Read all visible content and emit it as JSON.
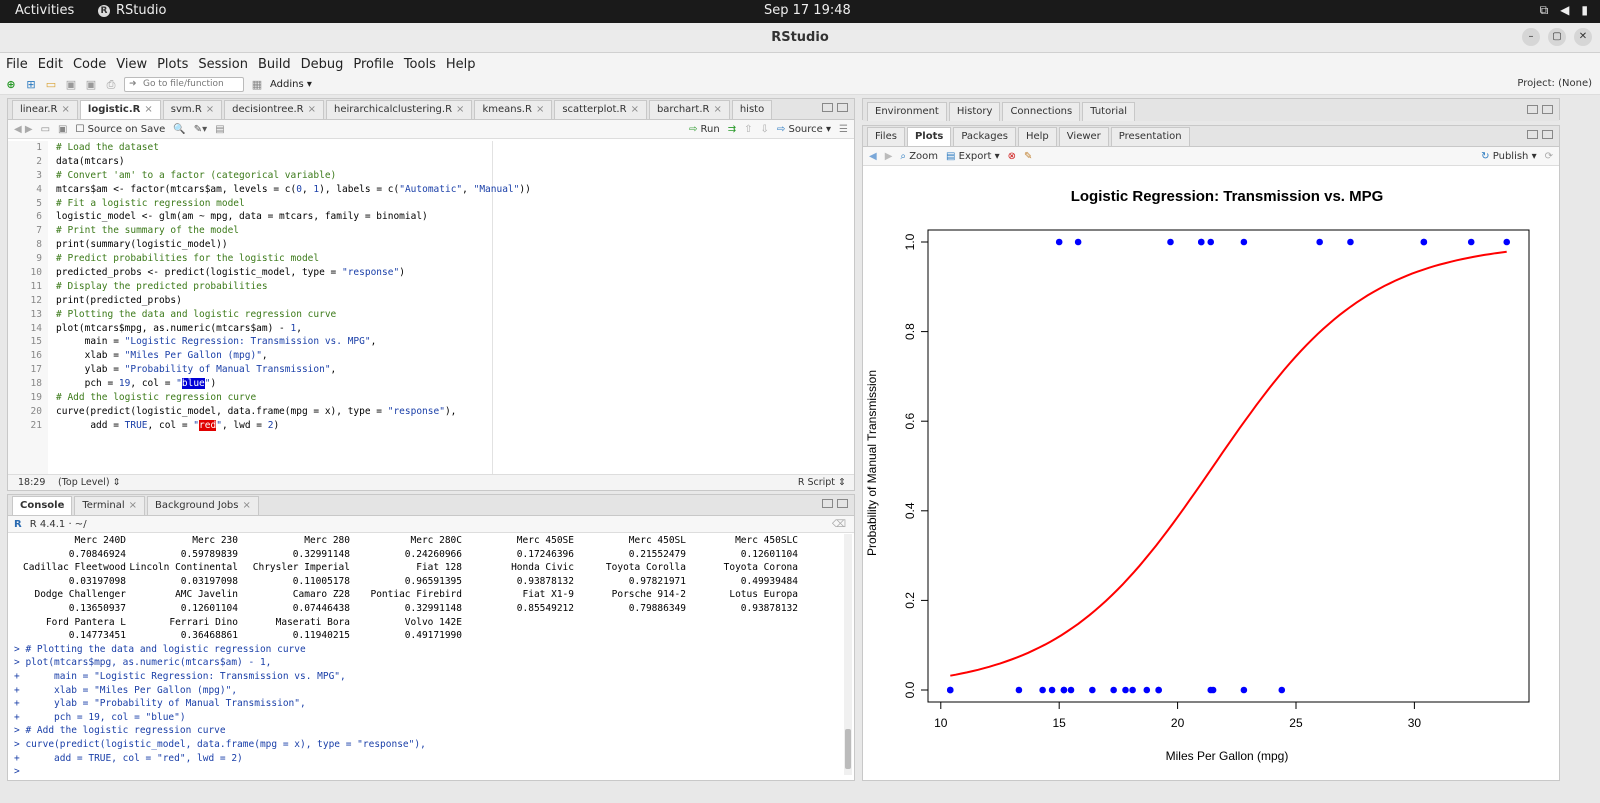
{
  "system": {
    "activities": "Activities",
    "app_name": "RStudio",
    "clock": "Sep 17  19:48"
  },
  "window": {
    "title": "RStudio"
  },
  "menu": [
    "File",
    "Edit",
    "Code",
    "View",
    "Plots",
    "Session",
    "Build",
    "Debug",
    "Profile",
    "Tools",
    "Help"
  ],
  "toolbar": {
    "goto_placeholder": "Go to file/function",
    "addins": "Addins",
    "project": "Project: (None)"
  },
  "editor": {
    "tabs": [
      "linear.R",
      "logistic.R",
      "svm.R",
      "decisiontree.R",
      "heirarchicalclustering.R",
      "kmeans.R",
      "scatterplot.R",
      "barchart.R",
      "histo"
    ],
    "active_tab": "logistic.R",
    "source_on_save": "Source on Save",
    "run": "Run",
    "source": "Source",
    "cursor_pos": "18:29",
    "scope": "(Top Level)",
    "file_type": "R Script"
  },
  "code_lines": [
    "# Load the dataset",
    "data(mtcars)",
    "# Convert 'am' to a factor (categorical variable)",
    "mtcars$am <- factor(mtcars$am, levels = c(0, 1), labels = c(\"Automatic\", \"Manual\"))",
    "# Fit a logistic regression model",
    "logistic_model <- glm(am ~ mpg, data = mtcars, family = binomial)",
    "# Print the summary of the model",
    "print(summary(logistic_model))",
    "# Predict probabilities for the logistic model",
    "predicted_probs <- predict(logistic_model, type = \"response\")",
    "# Display the predicted probabilities",
    "print(predicted_probs)",
    "# Plotting the data and logistic regression curve",
    "plot(mtcars$mpg, as.numeric(mtcars$am) - 1,",
    "     main = \"Logistic Regression: Transmission vs. MPG\",",
    "     xlab = \"Miles Per Gallon (mpg)\",",
    "     ylab = \"Probability of Manual Transmission\",",
    "     pch = 19, col = \"blue\")",
    "# Add the logistic regression curve",
    "curve(predict(logistic_model, data.frame(mpg = x), type = \"response\"),",
    "      add = TRUE, col = \"red\", lwd = 2)"
  ],
  "console": {
    "tabs": [
      "Console",
      "Terminal",
      "Background Jobs"
    ],
    "r_version": "R 4.4.1 · ~/",
    "output_rows": [
      [
        "Merc 240D",
        "Merc 230",
        "Merc 280",
        "Merc 280C",
        "Merc 450SE",
        "Merc 450SL",
        "Merc 450SLC"
      ],
      [
        "0.70846924",
        "0.59789839",
        "0.32991148",
        "0.24260966",
        "0.17246396",
        "0.21552479",
        "0.12601104"
      ],
      [
        "Cadillac Fleetwood",
        "Lincoln Continental",
        "Chrysler Imperial",
        "Fiat 128",
        "Honda Civic",
        "Toyota Corolla",
        "Toyota Corona"
      ],
      [
        "0.03197098",
        "0.03197098",
        "0.11005178",
        "0.96591395",
        "0.93878132",
        "0.97821971",
        "0.49939484"
      ],
      [
        "Dodge Challenger",
        "AMC Javelin",
        "Camaro Z28",
        "Pontiac Firebird",
        "Fiat X1-9",
        "Porsche 914-2",
        "Lotus Europa"
      ],
      [
        "0.13650937",
        "0.12601104",
        "0.07446438",
        "0.32991148",
        "0.85549212",
        "0.79886349",
        "0.93878132"
      ],
      [
        "Ford Pantera L",
        "Ferrari Dino",
        "Maserati Bora",
        "Volvo 142E",
        "",
        "",
        ""
      ],
      [
        "0.14773451",
        "0.36468861",
        "0.11940215",
        "0.49171990",
        "",
        "",
        ""
      ]
    ],
    "input_lines": [
      "> # Plotting the data and logistic regression curve",
      "> plot(mtcars$mpg, as.numeric(mtcars$am) - 1,",
      "+      main = \"Logistic Regression: Transmission vs. MPG\",",
      "+      xlab = \"Miles Per Gallon (mpg)\",",
      "+      ylab = \"Probability of Manual Transmission\",",
      "+      pch = 19, col = \"blue\")",
      "> # Add the logistic regression curve",
      "> curve(predict(logistic_model, data.frame(mpg = x), type = \"response\"),",
      "+      add = TRUE, col = \"red\", lwd = 2)",
      "> "
    ]
  },
  "env_tabs": [
    "Environment",
    "History",
    "Connections",
    "Tutorial"
  ],
  "plots_tabs": [
    "Files",
    "Plots",
    "Packages",
    "Help",
    "Viewer",
    "Presentation"
  ],
  "plots_toolbar": {
    "zoom": "Zoom",
    "export": "Export",
    "publish": "Publish"
  },
  "chart_data": {
    "type": "scatter",
    "title": "Logistic Regression: Transmission vs. MPG",
    "xlabel": "Miles Per Gallon (mpg)",
    "ylabel": "Probability of Manual Transmission",
    "xlim": [
      10.4,
      33.9
    ],
    "ylim": [
      0,
      1
    ],
    "xticks": [
      10,
      15,
      20,
      25,
      30
    ],
    "yticks": [
      0.0,
      0.2,
      0.4,
      0.6,
      0.8,
      1.0
    ],
    "point_color": "#0000ff",
    "curve_color": "#ff0000",
    "series": [
      {
        "values": [
          [
            21.0,
            1
          ],
          [
            21.0,
            1
          ],
          [
            22.8,
            1
          ],
          [
            21.4,
            0
          ],
          [
            18.7,
            0
          ],
          [
            18.1,
            0
          ],
          [
            14.3,
            0
          ],
          [
            24.4,
            0
          ],
          [
            22.8,
            0
          ],
          [
            19.2,
            0
          ],
          [
            17.8,
            0
          ],
          [
            16.4,
            0
          ],
          [
            17.3,
            0
          ],
          [
            15.2,
            0
          ],
          [
            10.4,
            0
          ],
          [
            10.4,
            0
          ],
          [
            14.7,
            0
          ],
          [
            32.4,
            1
          ],
          [
            30.4,
            1
          ],
          [
            33.9,
            1
          ],
          [
            21.5,
            0
          ],
          [
            15.5,
            0
          ],
          [
            15.2,
            0
          ],
          [
            13.3,
            0
          ],
          [
            19.2,
            0
          ],
          [
            27.3,
            1
          ],
          [
            26.0,
            1
          ],
          [
            30.4,
            1
          ],
          [
            15.8,
            1
          ],
          [
            19.7,
            1
          ],
          [
            15.0,
            1
          ],
          [
            21.4,
            1
          ]
        ]
      }
    ],
    "curve": {
      "intercept": -6.604,
      "slope": 0.307
    }
  }
}
